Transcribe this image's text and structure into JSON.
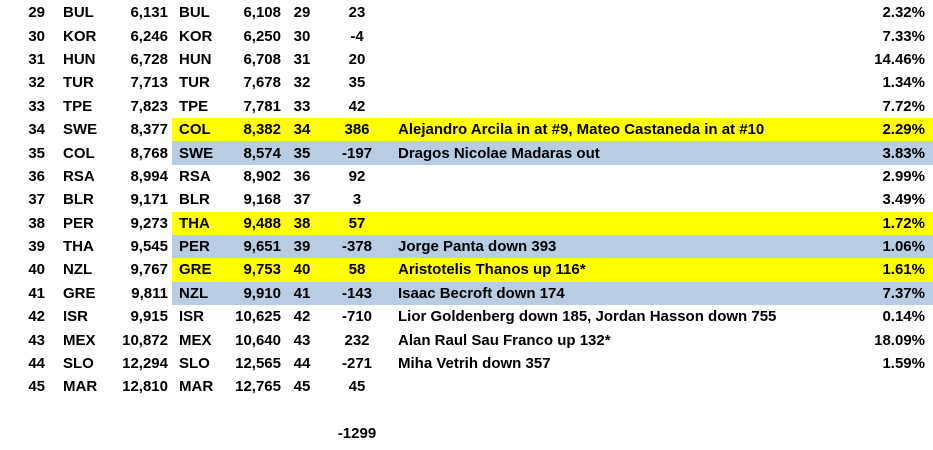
{
  "colors": {
    "highlight_yellow": "#ffff00",
    "highlight_blue": "#b8cce4",
    "text": "#000000",
    "background": "#ffffff"
  },
  "table": {
    "rows": [
      {
        "rank_a": "29",
        "country_a": "BUL",
        "value_a": "6,131",
        "country_b": "BUL",
        "value_b": "6,108",
        "rank_b": "29",
        "diff": "23",
        "note": "",
        "pct": "2.32%",
        "highlight": "none"
      },
      {
        "rank_a": "30",
        "country_a": "KOR",
        "value_a": "6,246",
        "country_b": "KOR",
        "value_b": "6,250",
        "rank_b": "30",
        "diff": "-4",
        "note": "",
        "pct": "7.33%",
        "highlight": "none"
      },
      {
        "rank_a": "31",
        "country_a": "HUN",
        "value_a": "6,728",
        "country_b": "HUN",
        "value_b": "6,708",
        "rank_b": "31",
        "diff": "20",
        "note": "",
        "pct": "14.46%",
        "highlight": "none"
      },
      {
        "rank_a": "32",
        "country_a": "TUR",
        "value_a": "7,713",
        "country_b": "TUR",
        "value_b": "7,678",
        "rank_b": "32",
        "diff": "35",
        "note": "",
        "pct": "1.34%",
        "highlight": "none"
      },
      {
        "rank_a": "33",
        "country_a": "TPE",
        "value_a": "7,823",
        "country_b": "TPE",
        "value_b": "7,781",
        "rank_b": "33",
        "diff": "42",
        "note": "",
        "pct": "7.72%",
        "highlight": "none"
      },
      {
        "rank_a": "34",
        "country_a": "SWE",
        "value_a": "8,377",
        "country_b": "COL",
        "value_b": "8,382",
        "rank_b": "34",
        "diff": "386",
        "note": "Alejandro Arcila in at #9, Mateo Castaneda in at #10",
        "pct": "2.29%",
        "highlight": "yellow"
      },
      {
        "rank_a": "35",
        "country_a": "COL",
        "value_a": "8,768",
        "country_b": "SWE",
        "value_b": "8,574",
        "rank_b": "35",
        "diff": "-197",
        "note": "Dragos Nicolae Madaras out",
        "pct": "3.83%",
        "highlight": "blue"
      },
      {
        "rank_a": "36",
        "country_a": "RSA",
        "value_a": "8,994",
        "country_b": "RSA",
        "value_b": "8,902",
        "rank_b": "36",
        "diff": "92",
        "note": "",
        "pct": "2.99%",
        "highlight": "none"
      },
      {
        "rank_a": "37",
        "country_a": "BLR",
        "value_a": "9,171",
        "country_b": "BLR",
        "value_b": "9,168",
        "rank_b": "37",
        "diff": "3",
        "note": "",
        "pct": "3.49%",
        "highlight": "none"
      },
      {
        "rank_a": "38",
        "country_a": "PER",
        "value_a": "9,273",
        "country_b": "THA",
        "value_b": "9,488",
        "rank_b": "38",
        "diff": "57",
        "note": "",
        "pct": "1.72%",
        "highlight": "yellow"
      },
      {
        "rank_a": "39",
        "country_a": "THA",
        "value_a": "9,545",
        "country_b": "PER",
        "value_b": "9,651",
        "rank_b": "39",
        "diff": "-378",
        "note": "Jorge Panta down 393",
        "pct": "1.06%",
        "highlight": "blue"
      },
      {
        "rank_a": "40",
        "country_a": "NZL",
        "value_a": "9,767",
        "country_b": "GRE",
        "value_b": "9,753",
        "rank_b": "40",
        "diff": "58",
        "note": "Aristotelis Thanos up 116*",
        "pct": "1.61%",
        "highlight": "yellow"
      },
      {
        "rank_a": "41",
        "country_a": "GRE",
        "value_a": "9,811",
        "country_b": "NZL",
        "value_b": "9,910",
        "rank_b": "41",
        "diff": "-143",
        "note": "Isaac Becroft down 174",
        "pct": "7.37%",
        "highlight": "blue"
      },
      {
        "rank_a": "42",
        "country_a": "ISR",
        "value_a": "9,915",
        "country_b": "ISR",
        "value_b": "10,625",
        "rank_b": "42",
        "diff": "-710",
        "note": "Lior Goldenberg down 185, Jordan Hasson down 755",
        "pct": "0.14%",
        "highlight": "none"
      },
      {
        "rank_a": "43",
        "country_a": "MEX",
        "value_a": "10,872",
        "country_b": "MEX",
        "value_b": "10,640",
        "rank_b": "43",
        "diff": "232",
        "note": "Alan Raul Sau Franco up 132*",
        "pct": "18.09%",
        "highlight": "none"
      },
      {
        "rank_a": "44",
        "country_a": "SLO",
        "value_a": "12,294",
        "country_b": "SLO",
        "value_b": "12,565",
        "rank_b": "44",
        "diff": "-271",
        "note": "Miha Vetrih down 357",
        "pct": "1.59%",
        "highlight": "none"
      },
      {
        "rank_a": "45",
        "country_a": "MAR",
        "value_a": "12,810",
        "country_b": "MAR",
        "value_b": "12,765",
        "rank_b": "45",
        "diff": "45",
        "note": "",
        "pct": "",
        "highlight": "none"
      }
    ],
    "footer": {
      "total_diff": "-1299"
    }
  }
}
